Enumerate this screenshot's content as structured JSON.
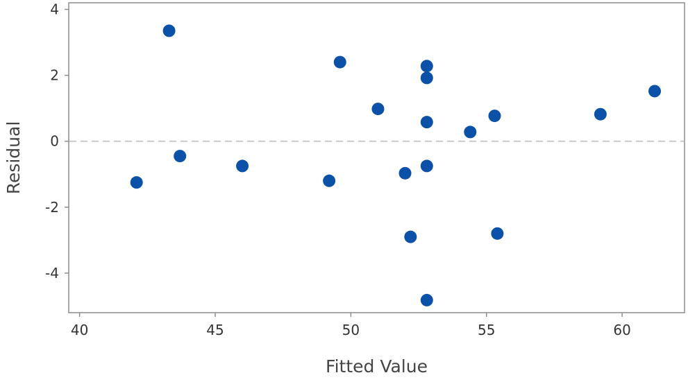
{
  "chart_data": {
    "type": "scatter",
    "title": "",
    "xlabel": "Fitted Value",
    "ylabel": "Residual",
    "xlim": [
      39.6,
      62.3
    ],
    "ylim": [
      -5.2,
      4.2
    ],
    "x_ticks": [
      40,
      45,
      50,
      55,
      60
    ],
    "y_ticks": [
      4,
      2,
      0,
      -2,
      -4
    ],
    "x_tick_labels": [
      "40",
      "45",
      "50",
      "55",
      "60"
    ],
    "y_tick_labels": [
      "4",
      "2",
      "0",
      "-2",
      "-4"
    ],
    "reference_line": {
      "y": 0,
      "style": "dashed"
    },
    "grid": false,
    "point_color": "#0b51a8",
    "reference_line_color": "#c8c8c8",
    "axis_color": "#8c8c8c",
    "points": [
      {
        "x": 42.1,
        "y": -1.25
      },
      {
        "x": 43.3,
        "y": 3.35
      },
      {
        "x": 43.7,
        "y": -0.45
      },
      {
        "x": 46.0,
        "y": -0.75
      },
      {
        "x": 49.2,
        "y": -1.2
      },
      {
        "x": 49.6,
        "y": 2.4
      },
      {
        "x": 51.0,
        "y": 0.98
      },
      {
        "x": 52.0,
        "y": -0.97
      },
      {
        "x": 52.2,
        "y": -2.9
      },
      {
        "x": 52.8,
        "y": 2.28
      },
      {
        "x": 52.8,
        "y": 1.92
      },
      {
        "x": 52.8,
        "y": 0.58
      },
      {
        "x": 52.8,
        "y": -0.75
      },
      {
        "x": 52.8,
        "y": -4.82
      },
      {
        "x": 54.4,
        "y": 0.28
      },
      {
        "x": 55.3,
        "y": 0.77
      },
      {
        "x": 55.4,
        "y": -2.8
      },
      {
        "x": 59.2,
        "y": 0.82
      },
      {
        "x": 61.2,
        "y": 1.52
      }
    ]
  }
}
